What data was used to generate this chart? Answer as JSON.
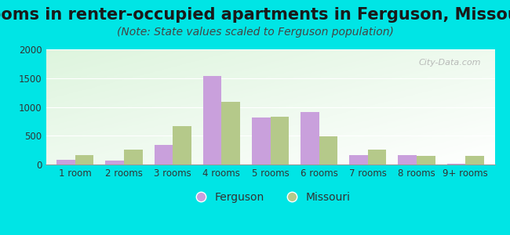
{
  "title": "Rooms in renter-occupied apartments in Ferguson, Missouri",
  "subtitle": "(Note: State values scaled to Ferguson population)",
  "categories": [
    "1 room",
    "2 rooms",
    "3 rooms",
    "4 rooms",
    "5 rooms",
    "6 rooms",
    "7 rooms",
    "8 rooms",
    "9+ rooms"
  ],
  "ferguson_values": [
    75,
    70,
    340,
    1540,
    810,
    910,
    160,
    165,
    15
  ],
  "missouri_values": [
    165,
    255,
    665,
    1095,
    835,
    490,
    255,
    155,
    150
  ],
  "ferguson_color": "#c9a0dc",
  "missouri_color": "#b5c98a",
  "bg_color": "#00e5e5",
  "ylim": [
    0,
    2000
  ],
  "yticks": [
    0,
    500,
    1000,
    1500,
    2000
  ],
  "title_fontsize": 15,
  "subtitle_fontsize": 10,
  "legend_fontsize": 10,
  "tick_fontsize": 8.5,
  "bar_width": 0.38
}
